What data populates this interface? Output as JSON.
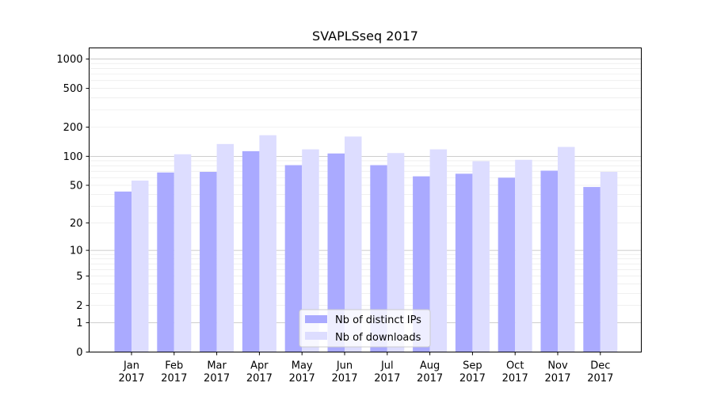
{
  "chart_data": {
    "type": "bar",
    "title": "SVAPLSseq 2017",
    "xlabel": "",
    "ylabel": "",
    "yscale": "log(1+y)",
    "ylim": [
      0,
      1300
    ],
    "yticks": [
      0,
      1,
      2,
      5,
      10,
      20,
      50,
      100,
      200,
      500,
      1000
    ],
    "ytick_labels": [
      "0",
      "1",
      "2",
      "5",
      "10",
      "20",
      "50",
      "100",
      "200",
      "500",
      "1000"
    ],
    "grid": true,
    "legend_position": "bottom-center",
    "categories": [
      "Jan\n2017",
      "Feb\n2017",
      "Mar\n2017",
      "Apr\n2017",
      "May\n2017",
      "Jun\n2017",
      "Jul\n2017",
      "Aug\n2017",
      "Sep\n2017",
      "Oct\n2017",
      "Nov\n2017",
      "Dec\n2017"
    ],
    "series": [
      {
        "name": "Nb of distinct IPs",
        "color": "#aaaaff",
        "values": [
          43,
          68,
          69,
          113,
          81,
          107,
          81,
          62,
          66,
          60,
          71,
          48
        ]
      },
      {
        "name": "Nb of downloads",
        "color": "#ddddff",
        "values": [
          56,
          105,
          134,
          165,
          118,
          160,
          108,
          118,
          89,
          92,
          125,
          69
        ]
      }
    ]
  }
}
